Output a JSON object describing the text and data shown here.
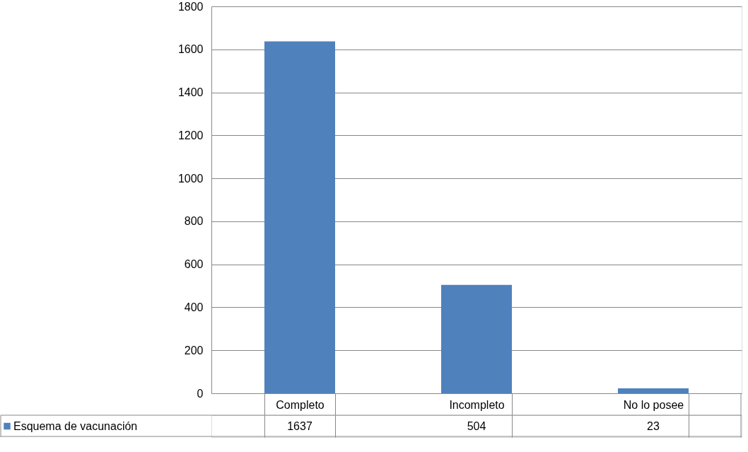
{
  "chart_data": {
    "type": "bar",
    "categories": [
      "Completo",
      "Incompleto",
      "No lo posee"
    ],
    "series": [
      {
        "name": "Esquema de vacunación",
        "color": "#4f81bd",
        "values": [
          1637,
          504,
          23
        ]
      }
    ],
    "ylim": [
      0,
      1800
    ],
    "yticks": [
      0,
      200,
      400,
      600,
      800,
      1000,
      1200,
      1400,
      1600,
      1800
    ],
    "grid": "y",
    "data_labels": true
  }
}
